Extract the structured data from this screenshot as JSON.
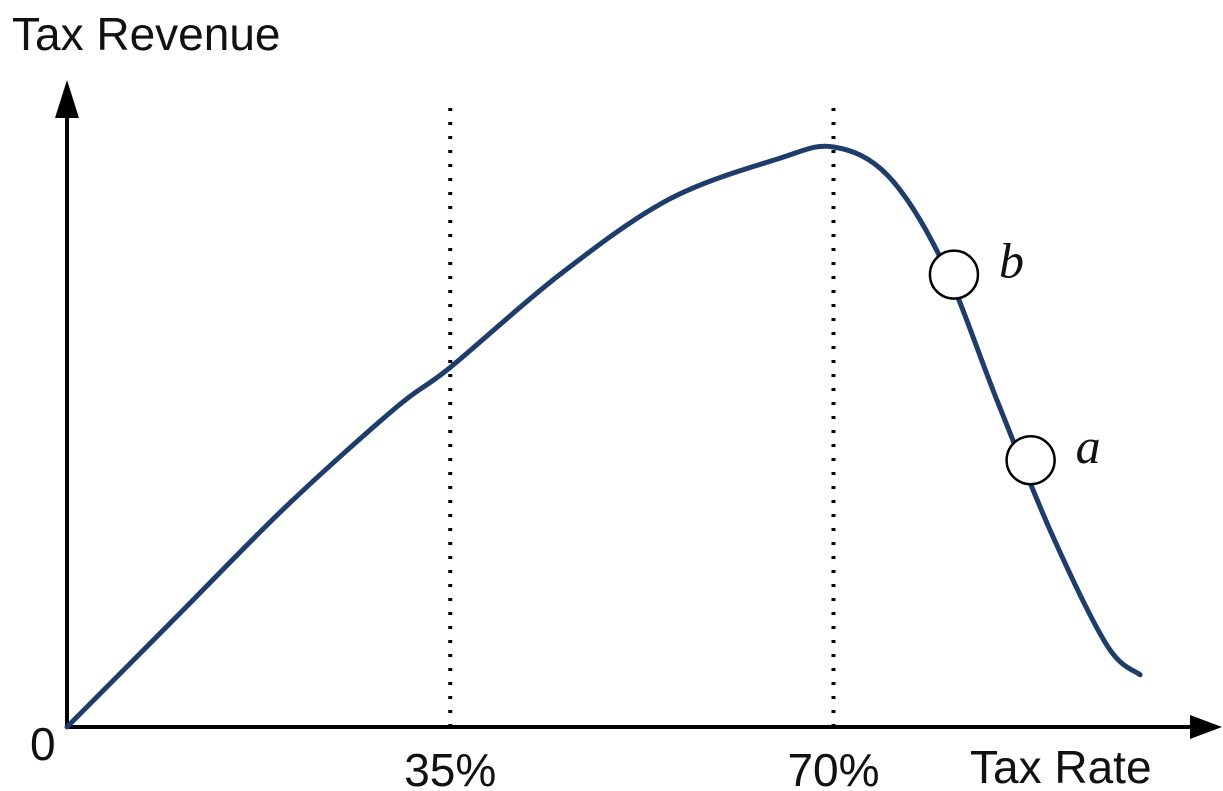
{
  "chart_data": {
    "type": "line",
    "ylabel": "Tax Revenue",
    "xlabel": "Tax Rate",
    "origin_label": "0",
    "xlim": [
      0,
      1
    ],
    "ylim": [
      0,
      1
    ],
    "x_ticks": [
      {
        "value": 0.35,
        "label": "35%"
      },
      {
        "value": 0.7,
        "label": "70%"
      }
    ],
    "reference_lines": [
      0.35,
      0.7
    ],
    "curve_color": "#1f3d6b",
    "series": [
      {
        "x": [
          0,
          0.1,
          0.2,
          0.3,
          0.35,
          0.45,
          0.55,
          0.65,
          0.7,
          0.75,
          0.8,
          0.85,
          0.9,
          0.95,
          0.98
        ],
        "y": [
          0,
          0.19,
          0.38,
          0.55,
          0.62,
          0.78,
          0.91,
          0.98,
          1.0,
          0.95,
          0.8,
          0.56,
          0.33,
          0.14,
          0.09
        ]
      }
    ],
    "points": [
      {
        "label": "b",
        "x": 0.81,
        "y": 0.78
      },
      {
        "label": "a",
        "x": 0.88,
        "y": 0.46
      }
    ]
  }
}
